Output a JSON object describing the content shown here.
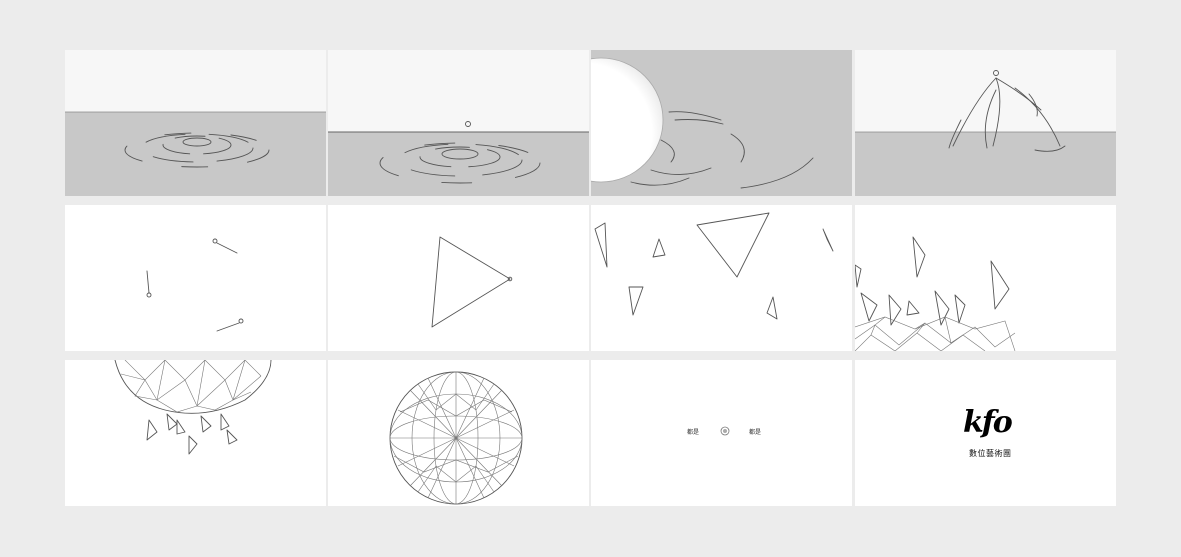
{
  "storyboard": {
    "background_color": "#ececec",
    "frame_color": "#ffffff",
    "water_color": "#c8c8c8",
    "line_color": "#555555",
    "frames": [
      {
        "id": 1,
        "scene": "water-ripples"
      },
      {
        "id": 2,
        "scene": "water-drop-ripples"
      },
      {
        "id": 3,
        "scene": "sphere-waves"
      },
      {
        "id": 4,
        "scene": "splash"
      },
      {
        "id": 5,
        "scene": "three-points"
      },
      {
        "id": 6,
        "scene": "triangle"
      },
      {
        "id": 7,
        "scene": "scattered-triangles"
      },
      {
        "id": 8,
        "scene": "triangle-shards"
      },
      {
        "id": 9,
        "scene": "partial-geodesic-sphere"
      },
      {
        "id": 10,
        "scene": "geodesic-sphere"
      },
      {
        "id": 11,
        "scene": "small-text-mark",
        "left_text": "都是",
        "right_text": "都是"
      },
      {
        "id": 12,
        "scene": "logo",
        "logo_text": "kfo",
        "subtitle": "數位藝術團"
      }
    ]
  }
}
